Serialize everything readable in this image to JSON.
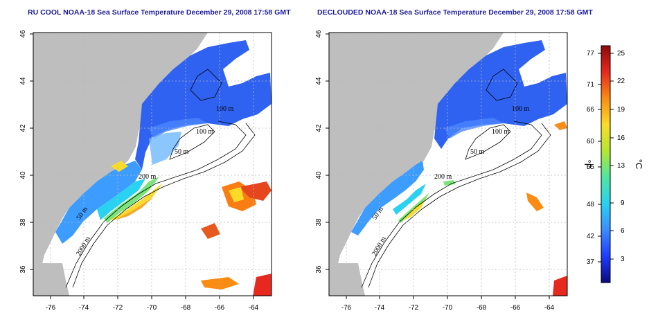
{
  "panels": [
    {
      "title": "RU COOL NOAA-18 Sea Surface Temperature December 29, 2008 17:58 GMT",
      "x_ticks": [
        "-76",
        "-74",
        "-72",
        "-70",
        "-68",
        "-66",
        "-64"
      ],
      "y_ticks": [
        "36",
        "38",
        "40",
        "42",
        "44",
        "46"
      ],
      "contour_labels": [
        "100 m",
        "100 m",
        "50 m",
        "200 m",
        "50 m",
        "2000 m"
      ]
    },
    {
      "title": "DECLOUDED NOAA-18 Sea Surface Temperature December 29, 2008 17:58 GMT",
      "x_ticks": [
        "-76",
        "-74",
        "-72",
        "-70",
        "-68",
        "-66",
        "-64"
      ],
      "y_ticks": [
        "36",
        "38",
        "40",
        "42",
        "44",
        "46"
      ],
      "contour_labels": [
        "100 m",
        "100 m",
        "50 m",
        "200 m",
        "50 m",
        "2000 m"
      ]
    }
  ],
  "colorbar": {
    "fahrenheit_ticks": [
      "77",
      "71",
      "66",
      "60",
      "55",
      "48",
      "42",
      "37"
    ],
    "celsius_ticks": [
      "25",
      "22",
      "19",
      "16",
      "13",
      "9",
      "6",
      "3"
    ],
    "fahrenheit_label": "°F",
    "celsius_label": "°C",
    "colors": [
      "#0a0a80",
      "#1e3cff",
      "#3c8cff",
      "#28d2f0",
      "#50e6a0",
      "#b4e632",
      "#fadc28",
      "#fa8c14",
      "#e6281e",
      "#8c0a0a"
    ]
  }
}
